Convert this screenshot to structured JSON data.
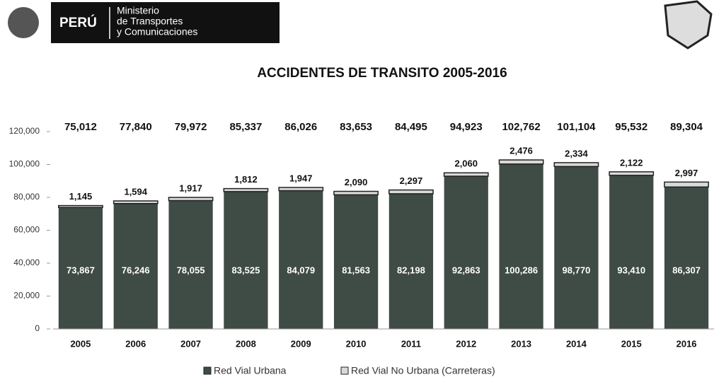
{
  "header": {
    "country": "PERÚ",
    "ministry": [
      "Ministerio",
      "de Transportes",
      "y Comunicaciones"
    ]
  },
  "chart_data": {
    "type": "stacked_bar",
    "title": "ACCIDENTES DE TRANSITO  2005-2016",
    "categories": [
      "2005",
      "2006",
      "2007",
      "2008",
      "2009",
      "2010",
      "2011",
      "2012",
      "2013",
      "2014",
      "2015",
      "2016"
    ],
    "series": [
      {
        "name": "Red Vial Urbana",
        "color": "#3f4b45",
        "values": [
          73867,
          76246,
          78055,
          83525,
          84079,
          81563,
          82198,
          92863,
          100286,
          98770,
          93410,
          86307
        ],
        "value_labels": [
          "73,867",
          "76,246",
          "78,055",
          "83,525",
          "84,079",
          "81,563",
          "82,198",
          "92,863",
          "100,286",
          "98,770",
          "93,410",
          "86,307"
        ]
      },
      {
        "name": "Red Vial No Urbana (Carreteras)",
        "color": "#d9d9d9",
        "values": [
          1145,
          1594,
          1917,
          1812,
          1947,
          2090,
          2297,
          2060,
          2476,
          2334,
          2122,
          2997
        ],
        "value_labels": [
          "1,145",
          "1,594",
          "1,917",
          "1,812",
          "1,947",
          "2,090",
          "2,297",
          "2,060",
          "2,476",
          "2,334",
          "2,122",
          "2,997"
        ]
      }
    ],
    "totals": [
      75012,
      77840,
      79972,
      85337,
      86026,
      83653,
      84495,
      94923,
      102762,
      101104,
      95532,
      89304
    ],
    "totals_labels": [
      "75,012",
      "77,840",
      "79,972",
      "85,337",
      "86,026",
      "83,653",
      "84,495",
      "94,923",
      "102,762",
      "101,104",
      "95,532",
      "89,304"
    ],
    "ylim": [
      0,
      120000
    ],
    "yticks": [
      0,
      {
        "value": 20000,
        "label": "20,000"
      },
      {
        "value": 40000,
        "label": "40,000"
      },
      {
        "value": 60000,
        "label": "60,000"
      },
      {
        "value": 80000,
        "label": "80,000"
      },
      {
        "value": 100000,
        "label": "100,000"
      },
      {
        "value": 120000,
        "label": "120,000"
      }
    ],
    "legend": "bottom"
  }
}
